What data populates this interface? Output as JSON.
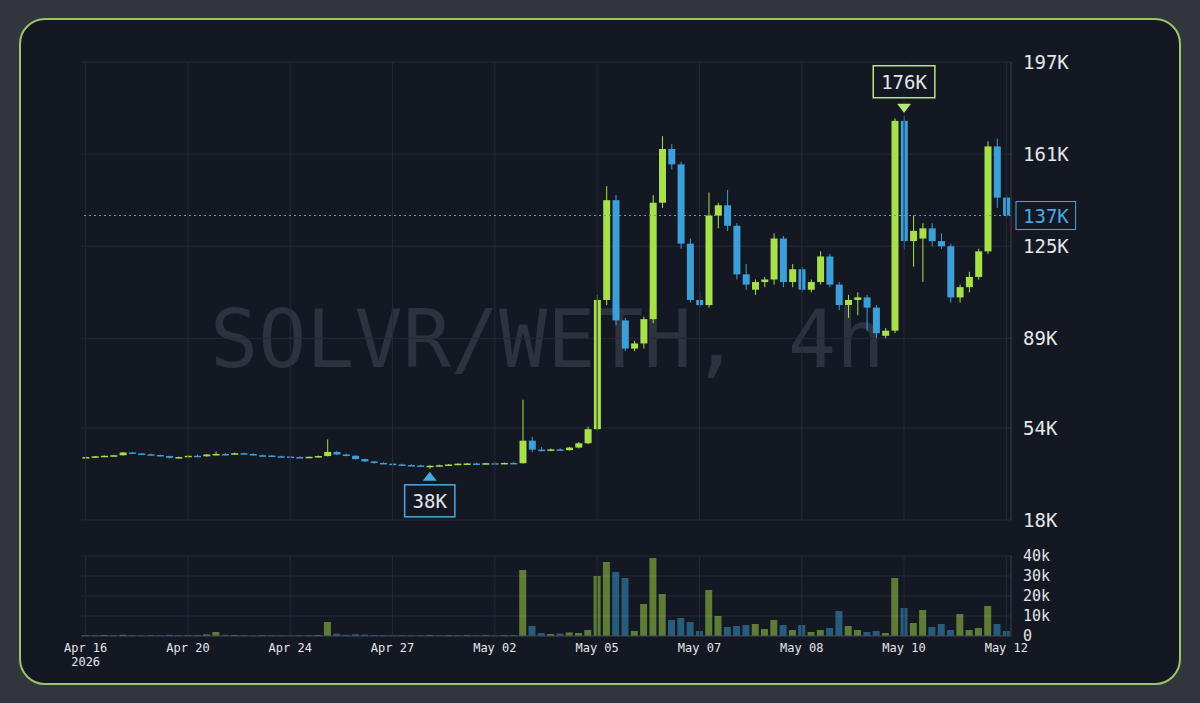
{
  "chart_data": [
    {
      "type": "candlestick",
      "title": "SOLVR/WETH, 4h",
      "open": [
        42500,
        42600,
        42900,
        43100,
        43300,
        44400,
        44000,
        43700,
        43400,
        43000,
        42300,
        42600,
        43100,
        42900,
        43600,
        43800,
        43500,
        44100,
        43800,
        43300,
        43200,
        42900,
        42800,
        42600,
        42500,
        42700,
        43000,
        44600,
        43600,
        43100,
        41800,
        40900,
        40300,
        40000,
        39700,
        39500,
        39300,
        39000,
        39200,
        39400,
        39700,
        40000,
        40100,
        39900,
        40200,
        40100,
        40300,
        40200,
        49000,
        45500,
        45200,
        45600,
        45300,
        46300,
        48000,
        53500,
        104000,
        143000,
        96000,
        85000,
        87000,
        96500,
        142000,
        163000,
        157000,
        126000,
        104000,
        102000,
        137000,
        141000,
        133000,
        114000,
        108000,
        111000,
        112000,
        128000,
        111000,
        116000,
        108000,
        111000,
        121000,
        110000,
        102000,
        104000,
        105000,
        101000,
        90000,
        92000,
        174000,
        127000,
        128000,
        132000,
        127000,
        125000,
        105000,
        109000,
        113000,
        123000,
        164000,
        144000
      ],
      "high": [
        42800,
        43000,
        43200,
        43400,
        44600,
        44600,
        44200,
        43900,
        43600,
        43100,
        42800,
        43300,
        43600,
        43800,
        44800,
        44200,
        44300,
        44300,
        44000,
        43500,
        43400,
        43100,
        43000,
        42900,
        42800,
        43200,
        49500,
        45000,
        43900,
        43300,
        42000,
        41100,
        40600,
        40300,
        40000,
        39800,
        39600,
        39400,
        39600,
        39900,
        40200,
        40300,
        40400,
        40300,
        40500,
        40400,
        40600,
        65000,
        50500,
        46500,
        45900,
        46000,
        46600,
        48500,
        54500,
        106000,
        148500,
        145000,
        97000,
        88000,
        97500,
        145000,
        168000,
        165000,
        158000,
        128000,
        107000,
        146000,
        142000,
        147000,
        134000,
        118000,
        112000,
        113000,
        130000,
        129000,
        118000,
        117000,
        112000,
        123000,
        122000,
        111000,
        106000,
        107000,
        106000,
        102000,
        93000,
        175000,
        176000,
        137000,
        134000,
        134000,
        130000,
        126000,
        110000,
        115000,
        124000,
        166000,
        167000,
        145000
      ],
      "low": [
        42300,
        42400,
        42600,
        42900,
        43200,
        43800,
        43500,
        43200,
        42800,
        42000,
        42100,
        42400,
        42800,
        42700,
        43400,
        43300,
        43400,
        43600,
        43200,
        42900,
        42700,
        42500,
        42400,
        42300,
        42300,
        42500,
        42800,
        43300,
        42900,
        41600,
        40600,
        40000,
        39800,
        39500,
        39300,
        39100,
        38800,
        38000,
        39000,
        39200,
        39500,
        39700,
        39800,
        39700,
        39900,
        39800,
        40000,
        40000,
        44500,
        44800,
        44900,
        45000,
        45100,
        46000,
        47600,
        53000,
        102000,
        94000,
        84000,
        84000,
        85000,
        95000,
        140000,
        155000,
        124000,
        103000,
        101000,
        101000,
        132000,
        131000,
        112000,
        108000,
        106000,
        109000,
        110000,
        109000,
        109000,
        107000,
        107000,
        110000,
        109000,
        100000,
        97000,
        98000,
        92000,
        89000,
        89000,
        91000,
        124000,
        117000,
        111000,
        125000,
        124000,
        103000,
        103000,
        107000,
        112000,
        122000,
        140000,
        136000
      ],
      "close": [
        42600,
        42900,
        43100,
        43300,
        44400,
        44000,
        43700,
        43400,
        43000,
        42300,
        42600,
        43100,
        42900,
        43600,
        43800,
        43500,
        44100,
        43800,
        43300,
        43200,
        42900,
        42800,
        42600,
        42500,
        42700,
        43000,
        44600,
        43600,
        43100,
        41800,
        40900,
        40300,
        40000,
        39700,
        39500,
        39300,
        39000,
        39200,
        39400,
        39700,
        40000,
        40100,
        39900,
        40200,
        40100,
        40300,
        40200,
        49000,
        45500,
        45200,
        45600,
        45300,
        46300,
        48000,
        53500,
        104000,
        143000,
        96000,
        85000,
        87000,
        96500,
        142000,
        163000,
        157000,
        126000,
        104000,
        102000,
        137000,
        141000,
        133000,
        114000,
        110000,
        111000,
        112000,
        128000,
        111000,
        116000,
        108000,
        111000,
        121000,
        110000,
        102000,
        104000,
        105000,
        101000,
        91000,
        92000,
        174000,
        127000,
        131000,
        132000,
        127000,
        125000,
        105000,
        109000,
        113000,
        123000,
        164000,
        144000,
        137000
      ],
      "colors": [
        "#a7e04a",
        "#a7e04a",
        "#a7e04a",
        "#a7e04a",
        "#a7e04a",
        "#3c9fd8",
        "#3c9fd8",
        "#3c9fd8",
        "#3c9fd8",
        "#3c9fd8",
        "#a7e04a",
        "#a7e04a",
        "#3c9fd8",
        "#a7e04a",
        "#a7e04a",
        "#3c9fd8",
        "#a7e04a",
        "#3c9fd8",
        "#3c9fd8",
        "#3c9fd8",
        "#3c9fd8",
        "#3c9fd8",
        "#3c9fd8",
        "#3c9fd8",
        "#a7e04a",
        "#a7e04a",
        "#a7e04a",
        "#3c9fd8",
        "#3c9fd8",
        "#3c9fd8",
        "#3c9fd8",
        "#3c9fd8",
        "#3c9fd8",
        "#3c9fd8",
        "#3c9fd8",
        "#3c9fd8",
        "#3c9fd8",
        "#a7e04a",
        "#a7e04a",
        "#a7e04a",
        "#a7e04a",
        "#a7e04a",
        "#3c9fd8",
        "#a7e04a",
        "#3c9fd8",
        "#a7e04a",
        "#3c9fd8",
        "#a7e04a",
        "#3c9fd8",
        "#3c9fd8",
        "#a7e04a",
        "#3c9fd8",
        "#a7e04a",
        "#a7e04a",
        "#a7e04a",
        "#a7e04a",
        "#a7e04a",
        "#3c9fd8",
        "#3c9fd8",
        "#a7e04a",
        "#a7e04a",
        "#a7e04a",
        "#a7e04a",
        "#3c9fd8",
        "#3c9fd8",
        "#3c9fd8",
        "#3c9fd8",
        "#a7e04a",
        "#a7e04a",
        "#3c9fd8",
        "#3c9fd8",
        "#3c9fd8",
        "#a7e04a",
        "#a7e04a",
        "#a7e04a",
        "#3c9fd8",
        "#a7e04a",
        "#3c9fd8",
        "#a7e04a",
        "#a7e04a",
        "#3c9fd8",
        "#3c9fd8",
        "#a7e04a",
        "#a7e04a",
        "#3c9fd8",
        "#3c9fd8",
        "#a7e04a",
        "#a7e04a",
        "#3c9fd8",
        "#a7e04a",
        "#a7e04a",
        "#3c9fd8",
        "#3c9fd8",
        "#3c9fd8",
        "#a7e04a",
        "#a7e04a",
        "#a7e04a",
        "#a7e04a",
        "#3c9fd8",
        "#3c9fd8"
      ],
      "ylim": [
        18000,
        197000
      ],
      "yticks": [
        {
          "value": 18000,
          "label": "18K"
        },
        {
          "value": 54000,
          "label": "54K"
        },
        {
          "value": 89000,
          "label": "89K"
        },
        {
          "value": 125000,
          "label": "125K"
        },
        {
          "value": 161000,
          "label": "161K"
        },
        {
          "value": 197000,
          "label": "197K"
        }
      ],
      "grid": true,
      "tick_labels": "y",
      "annotations": [
        {
          "label": "176K",
          "value": 176000,
          "index": 88,
          "color": "#b5e67a"
        },
        {
          "label": "38K",
          "value": 38000,
          "index": 37,
          "color": "#4aa8e0"
        }
      ],
      "reference_line": {
        "value": 137000,
        "label": "137K",
        "color": "#4aa8e0",
        "line_style": "dotted"
      }
    },
    {
      "type": "bar",
      "categories": [
        "Apr 16 2026",
        null,
        null,
        null,
        null,
        null,
        null,
        null,
        null,
        null,
        null,
        "Apr 20",
        null,
        null,
        null,
        null,
        null,
        null,
        null,
        null,
        null,
        null,
        "Apr 24",
        null,
        null,
        null,
        null,
        null,
        null,
        null,
        null,
        null,
        null,
        "Apr 27",
        null,
        null,
        null,
        null,
        null,
        null,
        null,
        null,
        null,
        null,
        "May 02",
        null,
        null,
        null,
        null,
        null,
        null,
        null,
        null,
        null,
        null,
        "May 05",
        null,
        null,
        null,
        null,
        null,
        null,
        null,
        null,
        null,
        null,
        "May 07",
        null,
        null,
        null,
        null,
        null,
        null,
        null,
        null,
        null,
        null,
        "May 08",
        null,
        null,
        null,
        null,
        null,
        null,
        null,
        null,
        null,
        null,
        "May 10",
        null,
        null,
        null,
        null,
        null,
        null,
        null,
        null,
        null,
        null,
        "May 12"
      ],
      "values": [
        400,
        300,
        500,
        300,
        600,
        400,
        300,
        500,
        400,
        600,
        300,
        400,
        500,
        800,
        2000,
        600,
        500,
        400,
        300,
        500,
        400,
        300,
        300,
        400,
        300,
        500,
        7000,
        1200,
        600,
        900,
        700,
        500,
        400,
        300,
        400,
        300,
        400,
        500,
        300,
        400,
        300,
        400,
        300,
        400,
        300,
        400,
        500,
        33000,
        5000,
        1500,
        1000,
        1200,
        1800,
        1500,
        3000,
        30000,
        37000,
        32000,
        29000,
        2500,
        16000,
        39000,
        21000,
        8000,
        9000,
        7000,
        2500,
        23000,
        10000,
        4500,
        5000,
        5500,
        6000,
        3500,
        8000,
        5500,
        3000,
        5500,
        2000,
        3000,
        4000,
        12500,
        5000,
        3000,
        2000,
        2500,
        1500,
        29000,
        14000,
        6500,
        13000,
        4500,
        6000,
        3000,
        11000,
        3000,
        4000,
        15000,
        6000,
        2500
      ],
      "colors": [
        "#a7e04a",
        "#a7e04a",
        "#a7e04a",
        "#a7e04a",
        "#a7e04a",
        "#3c9fd8",
        "#3c9fd8",
        "#3c9fd8",
        "#3c9fd8",
        "#3c9fd8",
        "#a7e04a",
        "#a7e04a",
        "#3c9fd8",
        "#a7e04a",
        "#a7e04a",
        "#3c9fd8",
        "#a7e04a",
        "#3c9fd8",
        "#3c9fd8",
        "#3c9fd8",
        "#3c9fd8",
        "#3c9fd8",
        "#3c9fd8",
        "#3c9fd8",
        "#a7e04a",
        "#a7e04a",
        "#a7e04a",
        "#3c9fd8",
        "#3c9fd8",
        "#3c9fd8",
        "#3c9fd8",
        "#3c9fd8",
        "#3c9fd8",
        "#3c9fd8",
        "#3c9fd8",
        "#3c9fd8",
        "#3c9fd8",
        "#a7e04a",
        "#a7e04a",
        "#a7e04a",
        "#a7e04a",
        "#a7e04a",
        "#3c9fd8",
        "#a7e04a",
        "#3c9fd8",
        "#a7e04a",
        "#3c9fd8",
        "#a7e04a",
        "#3c9fd8",
        "#3c9fd8",
        "#a7e04a",
        "#3c9fd8",
        "#a7e04a",
        "#a7e04a",
        "#a7e04a",
        "#a7e04a",
        "#a7e04a",
        "#3c9fd8",
        "#3c9fd8",
        "#a7e04a",
        "#a7e04a",
        "#a7e04a",
        "#a7e04a",
        "#3c9fd8",
        "#3c9fd8",
        "#3c9fd8",
        "#3c9fd8",
        "#a7e04a",
        "#a7e04a",
        "#3c9fd8",
        "#3c9fd8",
        "#3c9fd8",
        "#a7e04a",
        "#a7e04a",
        "#a7e04a",
        "#3c9fd8",
        "#a7e04a",
        "#3c9fd8",
        "#a7e04a",
        "#a7e04a",
        "#3c9fd8",
        "#3c9fd8",
        "#a7e04a",
        "#a7e04a",
        "#3c9fd8",
        "#3c9fd8",
        "#a7e04a",
        "#a7e04a",
        "#3c9fd8",
        "#a7e04a",
        "#a7e04a",
        "#3c9fd8",
        "#3c9fd8",
        "#3c9fd8",
        "#a7e04a",
        "#a7e04a",
        "#a7e04a",
        "#a7e04a",
        "#3c9fd8",
        "#3c9fd8"
      ],
      "ylim": [
        0,
        40000
      ],
      "yticks": [
        0,
        {
          "value": 10000,
          "label": "10k"
        },
        {
          "value": 20000,
          "label": "20k"
        },
        {
          "value": 30000,
          "label": "30k"
        },
        {
          "value": 40000,
          "label": "40k"
        }
      ],
      "grid": true
    }
  ]
}
